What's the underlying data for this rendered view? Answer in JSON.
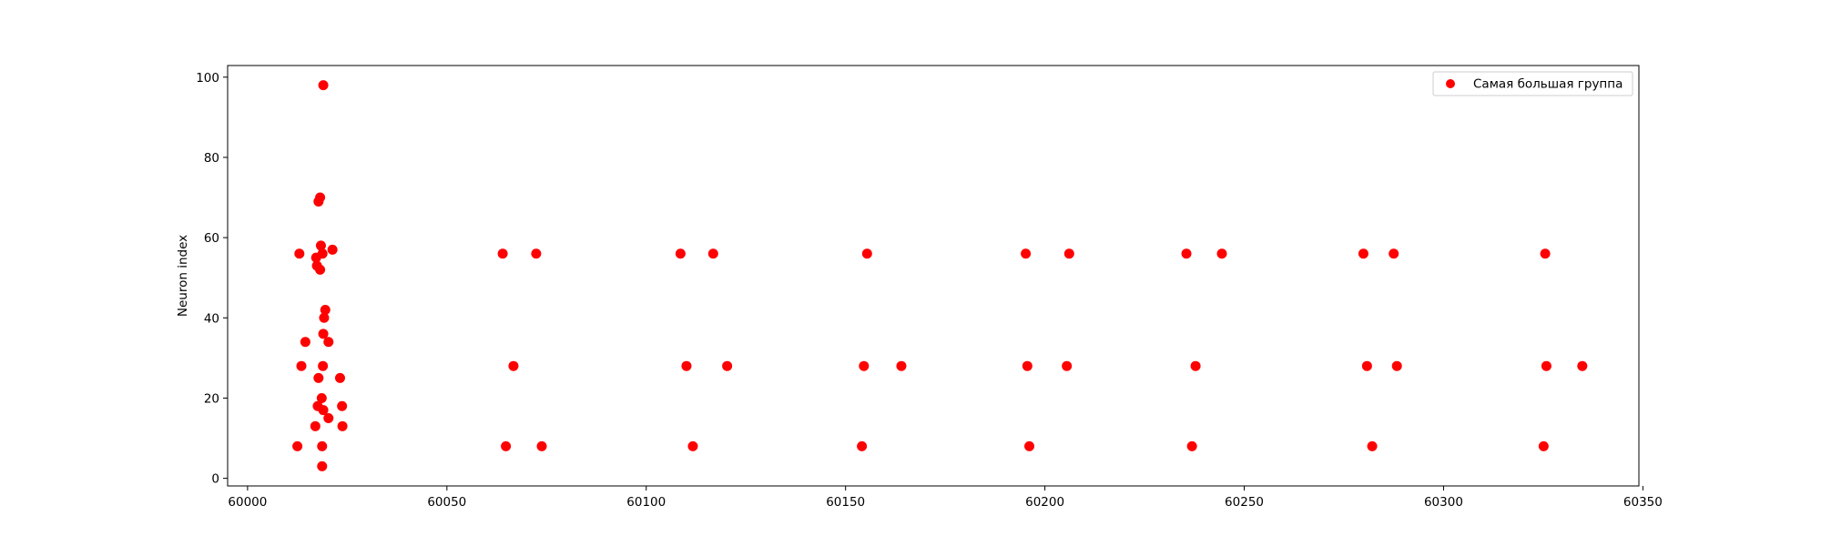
{
  "chart_data": {
    "type": "scatter",
    "title": "",
    "xlabel": "",
    "ylabel": "Neuron index",
    "xlim": [
      59995,
      60349
    ],
    "ylim": [
      -1.9,
      102.9
    ],
    "xticks": [
      60000,
      60050,
      60100,
      60150,
      60200,
      60250,
      60300,
      60350
    ],
    "yticks": [
      0,
      20,
      40,
      60,
      80,
      100
    ],
    "grid": false,
    "legend_position": "top-right",
    "colors": {
      "marker": "#ff0000",
      "axes": "#000000",
      "legend_border": "#cccccc"
    },
    "series": [
      {
        "name": "Самая большая группа",
        "points": [
          [
            60012.5,
            8
          ],
          [
            60013.0,
            56
          ],
          [
            60013.5,
            28
          ],
          [
            60014.5,
            34
          ],
          [
            60017.0,
            13
          ],
          [
            60017.2,
            55
          ],
          [
            60017.4,
            53
          ],
          [
            60017.6,
            18
          ],
          [
            60017.8,
            25
          ],
          [
            60017.8,
            69
          ],
          [
            60018.2,
            70
          ],
          [
            60018.2,
            52
          ],
          [
            60018.4,
            58
          ],
          [
            60018.6,
            20
          ],
          [
            60018.7,
            3
          ],
          [
            60018.7,
            8
          ],
          [
            60018.8,
            56
          ],
          [
            60018.9,
            28
          ],
          [
            60019.0,
            36
          ],
          [
            60019.0,
            17
          ],
          [
            60019.0,
            98
          ],
          [
            60019.2,
            40
          ],
          [
            60019.5,
            42
          ],
          [
            60020.3,
            15
          ],
          [
            60020.3,
            34
          ],
          [
            60021.3,
            57
          ],
          [
            60023.2,
            25
          ],
          [
            60023.7,
            18
          ],
          [
            60023.8,
            13
          ],
          [
            60064.0,
            56
          ],
          [
            60064.8,
            8
          ],
          [
            60066.7,
            28
          ],
          [
            60072.4,
            56
          ],
          [
            60073.8,
            8
          ],
          [
            60108.6,
            56
          ],
          [
            60110.1,
            28
          ],
          [
            60111.7,
            8
          ],
          [
            60116.8,
            56
          ],
          [
            60120.3,
            28
          ],
          [
            60154.1,
            8
          ],
          [
            60154.6,
            28
          ],
          [
            60155.4,
            56
          ],
          [
            60164.0,
            28
          ],
          [
            60195.2,
            56
          ],
          [
            60195.6,
            28
          ],
          [
            60196.1,
            8
          ],
          [
            60205.5,
            28
          ],
          [
            60206.1,
            56
          ],
          [
            60235.5,
            56
          ],
          [
            60236.9,
            8
          ],
          [
            60237.8,
            28
          ],
          [
            60244.4,
            56
          ],
          [
            60279.9,
            56
          ],
          [
            60280.8,
            28
          ],
          [
            60282.1,
            8
          ],
          [
            60287.5,
            56
          ],
          [
            60288.3,
            28
          ],
          [
            60325.1,
            8
          ],
          [
            60325.5,
            56
          ],
          [
            60325.8,
            28
          ],
          [
            60334.8,
            28
          ]
        ]
      }
    ]
  }
}
